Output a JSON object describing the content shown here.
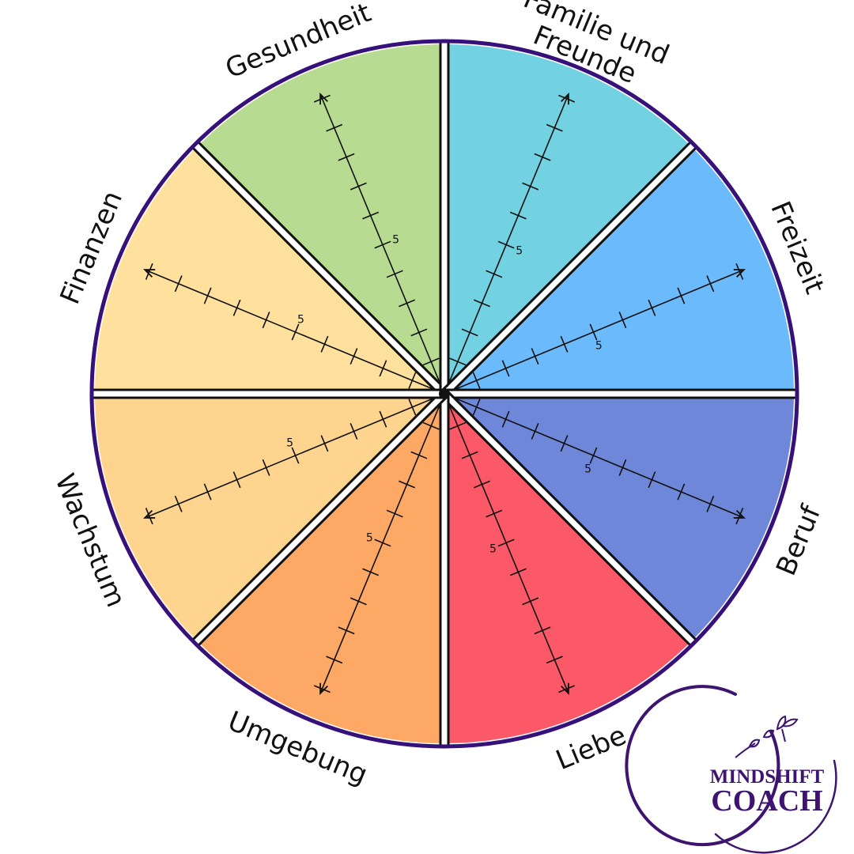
{
  "wheel": {
    "segments": [
      {
        "label": "Gesundheit",
        "color": "#b7dc91"
      },
      {
        "label": "Familie und Freunde",
        "label_lines": [
          "Familie und",
          "Freunde"
        ],
        "color": "#72d2e2"
      },
      {
        "label": "Freizeit",
        "color": "#6bbafc"
      },
      {
        "label": "Beruf",
        "color": "#6f87d9"
      },
      {
        "label": "Liebe",
        "color": "#fb5868"
      },
      {
        "label": "Umgebung",
        "color": "#fea865"
      },
      {
        "label": "Wachstum",
        "color": "#ffd48e"
      },
      {
        "label": "Finanzen",
        "color": "#ffe19d"
      }
    ],
    "scale_marker": "5",
    "scale_max": 10,
    "marker_value": 5,
    "rim_color": "#37117a"
  },
  "logo": {
    "line1": "MINDSHIFT",
    "line2": "COACH",
    "color": "#3d1470"
  }
}
